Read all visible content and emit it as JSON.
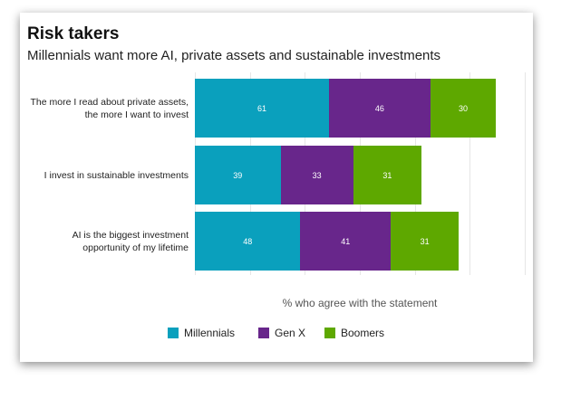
{
  "chart_data": {
    "type": "stacked-barh",
    "title": "Risk takers",
    "subtitle": "Millennials want more AI, private assets and sustainable investments",
    "x_label": "% who agree with the statement",
    "categories": [
      "The more I read about private assets, the more I want to invest",
      "I invest in sustainable investments",
      "AI is the biggest investment opportunity of my lifetime"
    ],
    "series": [
      {
        "name": "Millennials",
        "color": "#0aa0bd",
        "values": [
          61,
          39,
          48
        ]
      },
      {
        "name": "Gen X",
        "color": "#68268b",
        "values": [
          46,
          33,
          41
        ]
      },
      {
        "name": "Boomers",
        "color": "#5ea800",
        "values": [
          30,
          31,
          31
        ]
      }
    ],
    "xlim": [
      0,
      150
    ],
    "xticks": [
      0,
      25,
      50,
      75,
      100,
      125,
      150
    ],
    "grid": true
  }
}
